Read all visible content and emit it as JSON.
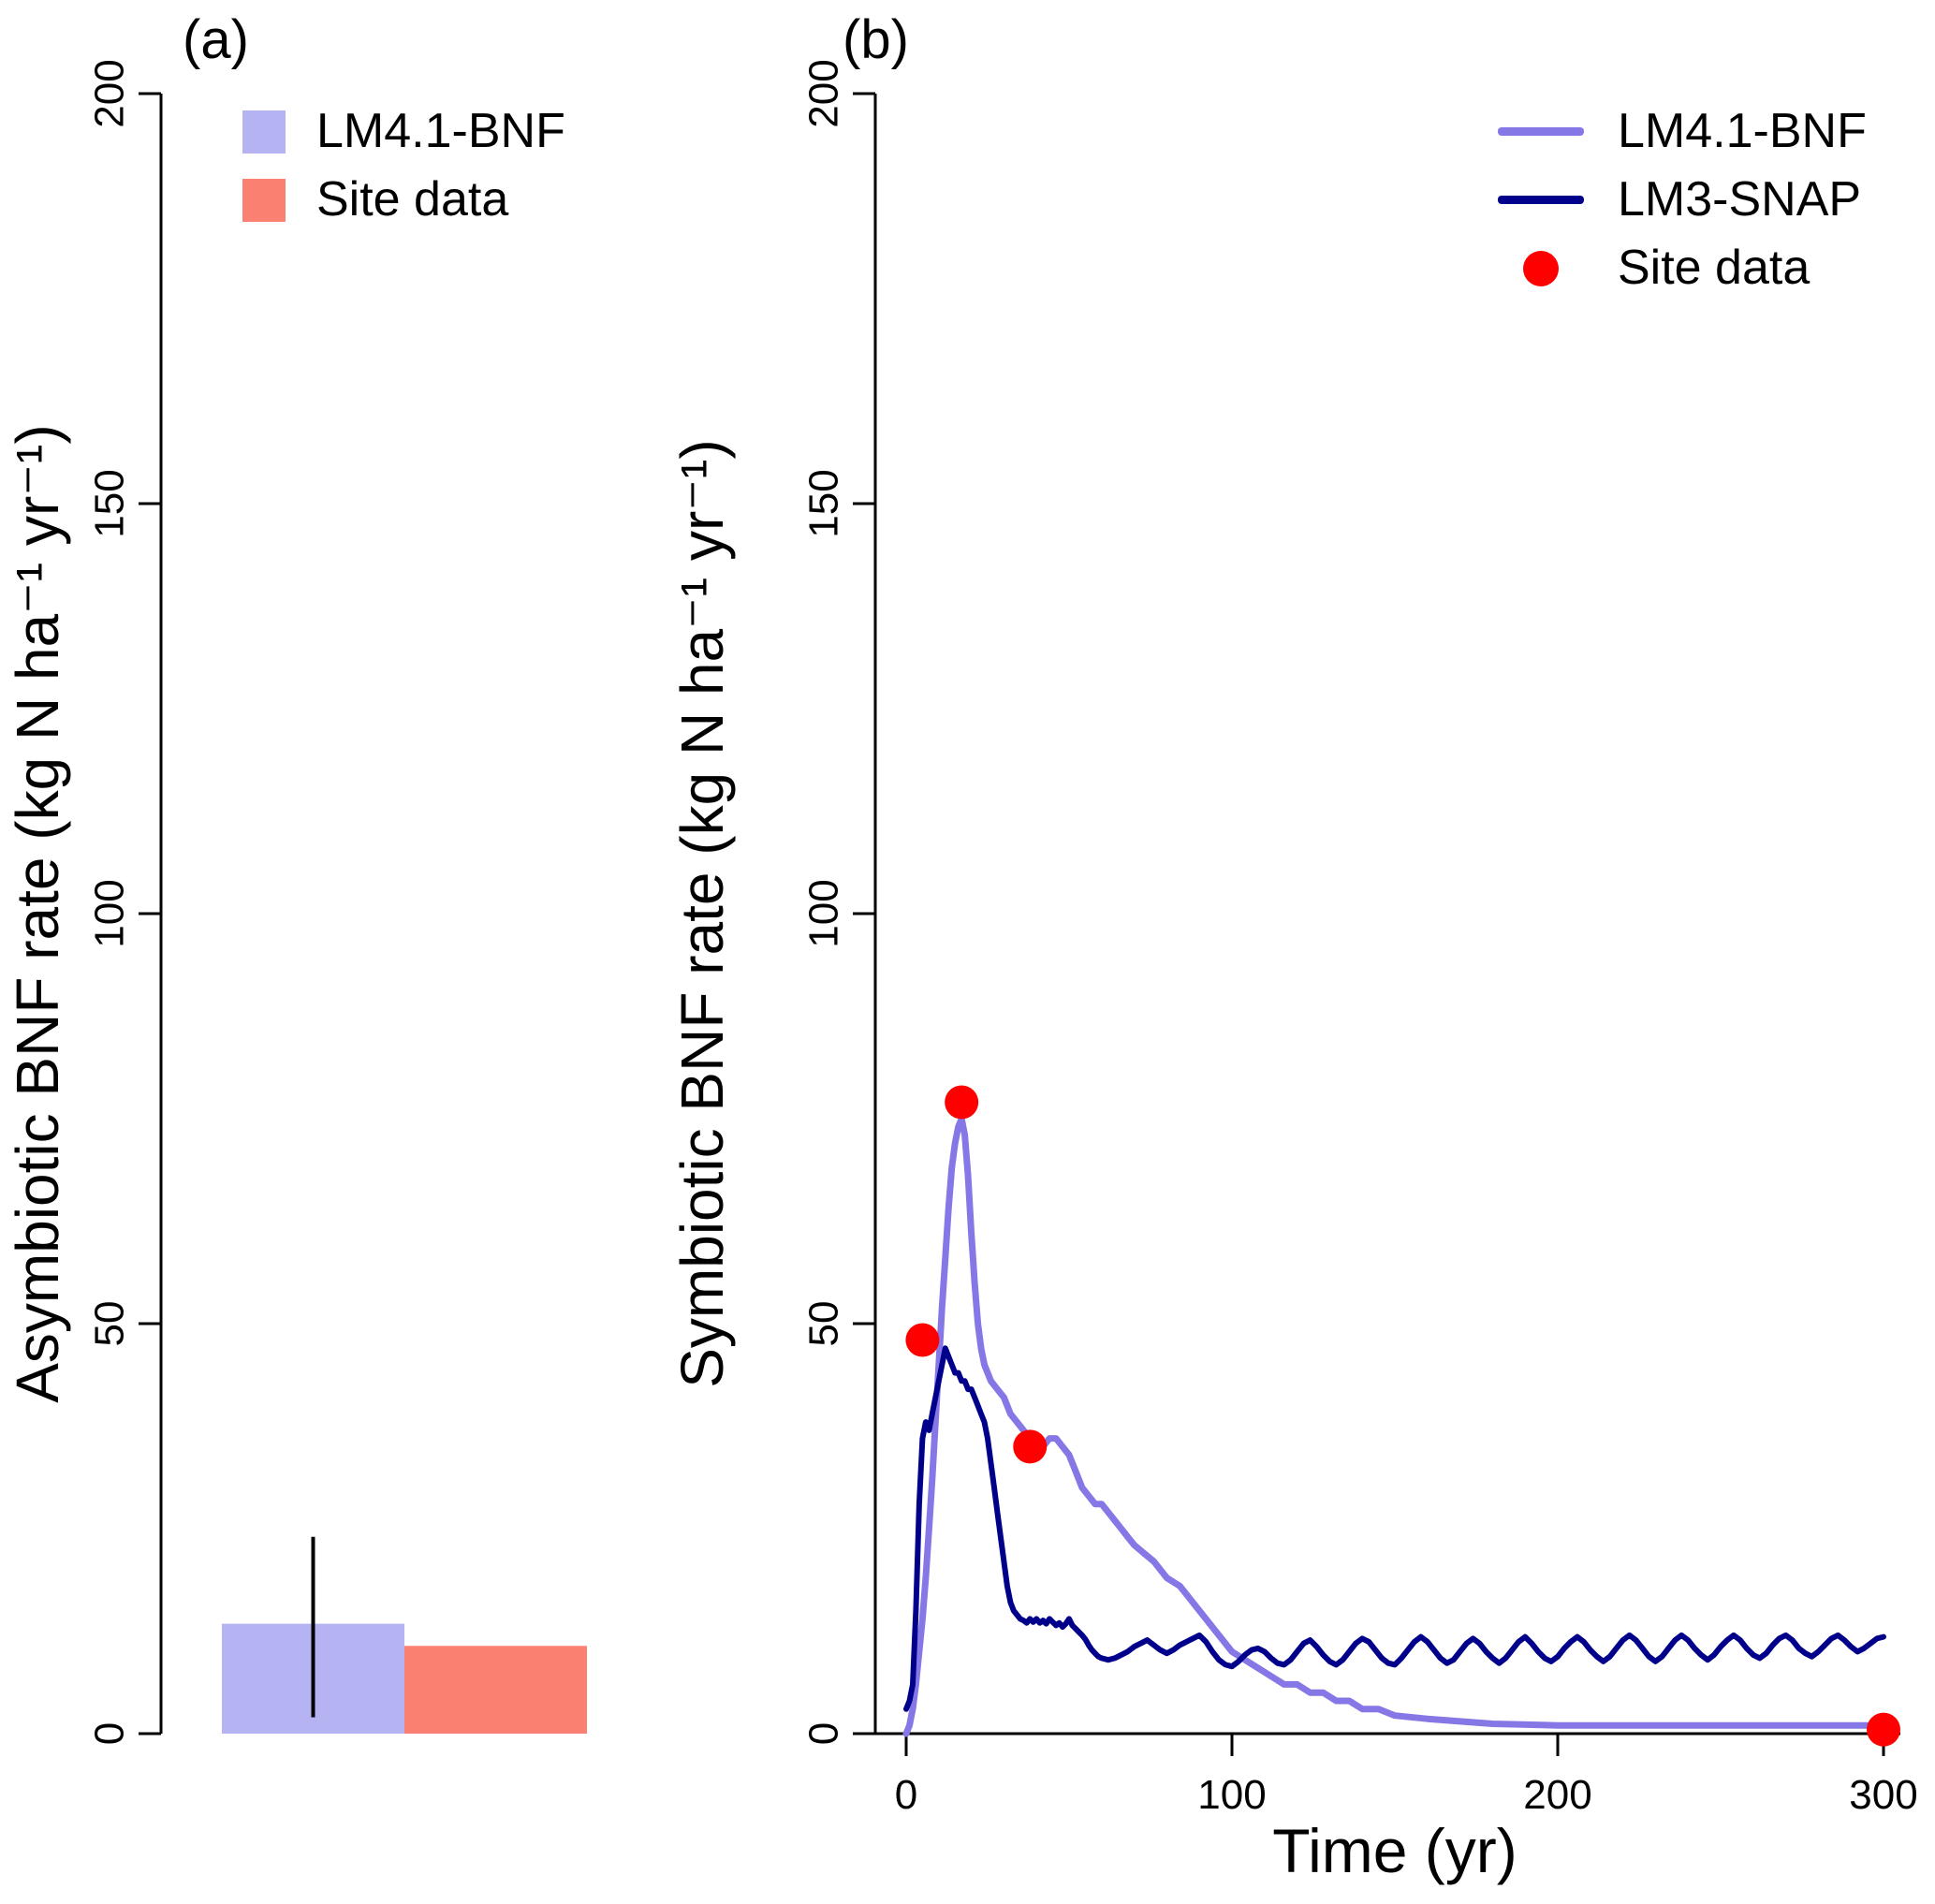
{
  "panel_a": {
    "tag": "(a)",
    "ylabel": "Asymbiotic BNF rate (kg N ha⁻¹ yr⁻¹)",
    "legend": [
      {
        "label": "LM4.1-BNF",
        "swatch": "box",
        "color": "#b6b3f3"
      },
      {
        "label": "Site data",
        "swatch": "box",
        "color": "#fa8072"
      }
    ]
  },
  "panel_b": {
    "tag": "(b)",
    "ylabel": "Symbiotic BNF rate (kg N ha⁻¹ yr⁻¹)",
    "xlabel": "Time (yr)",
    "legend": [
      {
        "label": "LM4.1-BNF",
        "swatch": "line",
        "color": "#8677e6"
      },
      {
        "label": "LM3-SNAP",
        "swatch": "line",
        "color": "#00008b"
      },
      {
        "label": "Site data",
        "swatch": "point",
        "color": "#ff0000"
      }
    ]
  },
  "chart_data": [
    {
      "type": "bar",
      "title": "(a)",
      "ylabel": "Asymbiotic BNF rate (kg N ha⁻¹ yr⁻¹)",
      "categories": [
        "LM4.1-BNF",
        "Site data"
      ],
      "values": [
        13.4,
        10.7
      ],
      "error_bars": [
        {
          "category": "LM4.1-BNF",
          "low": 2,
          "high": 24
        }
      ],
      "ylim": [
        0,
        200
      ],
      "yticks": [
        0,
        50,
        100,
        150,
        200
      ],
      "colors": [
        "#b6b3f3",
        "#fa8072"
      ],
      "legend_position": "top-left",
      "grid": false
    },
    {
      "type": "line",
      "title": "(b)",
      "xlabel": "Time (yr)",
      "ylabel": "Symbiotic BNF rate (kg N ha⁻¹ yr⁻¹)",
      "xlim": [
        0,
        300
      ],
      "ylim": [
        0,
        200
      ],
      "xticks": [
        0,
        100,
        200,
        300
      ],
      "yticks": [
        0,
        50,
        100,
        150,
        200
      ],
      "legend_position": "top-right",
      "grid": false,
      "series": [
        {
          "name": "LM4.1-BNF",
          "color": "#8677e6",
          "points": [
            [
              0,
              0
            ],
            [
              1,
              1
            ],
            [
              2,
              3
            ],
            [
              3,
              6
            ],
            [
              4,
              10
            ],
            [
              5,
              14
            ],
            [
              6,
              19
            ],
            [
              7,
              25
            ],
            [
              8,
              31
            ],
            [
              9,
              38
            ],
            [
              10,
              45
            ],
            [
              11,
              52
            ],
            [
              12,
              58
            ],
            [
              13,
              64
            ],
            [
              14,
              69
            ],
            [
              15,
              72
            ],
            [
              16,
              74
            ],
            [
              17,
              75
            ],
            [
              18,
              73
            ],
            [
              19,
              68
            ],
            [
              20,
              61
            ],
            [
              21,
              55
            ],
            [
              22,
              50
            ],
            [
              23,
              47
            ],
            [
              24,
              45
            ],
            [
              25,
              44
            ],
            [
              26,
              43
            ],
            [
              28,
              42
            ],
            [
              30,
              41
            ],
            [
              32,
              39
            ],
            [
              34,
              38
            ],
            [
              36,
              37
            ],
            [
              38,
              36
            ],
            [
              40,
              35
            ],
            [
              42,
              35
            ],
            [
              44,
              36
            ],
            [
              46,
              36
            ],
            [
              48,
              35
            ],
            [
              50,
              34
            ],
            [
              52,
              32
            ],
            [
              54,
              30
            ],
            [
              56,
              29
            ],
            [
              58,
              28
            ],
            [
              60,
              28
            ],
            [
              62,
              27
            ],
            [
              64,
              26
            ],
            [
              66,
              25
            ],
            [
              68,
              24
            ],
            [
              70,
              23
            ],
            [
              73,
              22
            ],
            [
              76,
              21
            ],
            [
              80,
              19
            ],
            [
              84,
              18
            ],
            [
              88,
              16
            ],
            [
              92,
              14
            ],
            [
              96,
              12
            ],
            [
              100,
              10
            ],
            [
              104,
              9
            ],
            [
              108,
              8
            ],
            [
              112,
              7
            ],
            [
              116,
              6
            ],
            [
              120,
              6
            ],
            [
              124,
              5
            ],
            [
              128,
              5
            ],
            [
              132,
              4
            ],
            [
              136,
              4
            ],
            [
              140,
              3
            ],
            [
              145,
              3
            ],
            [
              150,
              2.2
            ],
            [
              160,
              1.8
            ],
            [
              170,
              1.5
            ],
            [
              180,
              1.2
            ],
            [
              200,
              1
            ],
            [
              220,
              1
            ],
            [
              240,
              1
            ],
            [
              260,
              1
            ],
            [
              280,
              1
            ],
            [
              300,
              1
            ]
          ]
        },
        {
          "name": "LM3-SNAP",
          "color": "#00008b",
          "points": [
            [
              0,
              3
            ],
            [
              1,
              4
            ],
            [
              2,
              6
            ],
            [
              3,
              15
            ],
            [
              4,
              28
            ],
            [
              5,
              36
            ],
            [
              6,
              38
            ],
            [
              7,
              37
            ],
            [
              8,
              39
            ],
            [
              9,
              41
            ],
            [
              10,
              43
            ],
            [
              11,
              45
            ],
            [
              12,
              47
            ],
            [
              13,
              46
            ],
            [
              14,
              45
            ],
            [
              15,
              44
            ],
            [
              16,
              44
            ],
            [
              17,
              43
            ],
            [
              18,
              43
            ],
            [
              19,
              42
            ],
            [
              20,
              42
            ],
            [
              21,
              41
            ],
            [
              22,
              40
            ],
            [
              23,
              39
            ],
            [
              24,
              38
            ],
            [
              25,
              36
            ],
            [
              26,
              33
            ],
            [
              27,
              30
            ],
            [
              28,
              27
            ],
            [
              29,
              24
            ],
            [
              30,
              21
            ],
            [
              31,
              18
            ],
            [
              32,
              16
            ],
            [
              33,
              15
            ],
            [
              34,
              14.5
            ],
            [
              35,
              14
            ],
            [
              36,
              13.8
            ],
            [
              37,
              13.5
            ],
            [
              38,
              14
            ],
            [
              39,
              13.6
            ],
            [
              40,
              14
            ],
            [
              41,
              13.5
            ],
            [
              42,
              13.8
            ],
            [
              43,
              13.4
            ],
            [
              44,
              14
            ],
            [
              45,
              13.6
            ],
            [
              46,
              13.2
            ],
            [
              47,
              13.5
            ],
            [
              48,
              13
            ],
            [
              49,
              13.4
            ],
            [
              50,
              14
            ],
            [
              51,
              13.2
            ],
            [
              52,
              12.8
            ],
            [
              53,
              12.4
            ],
            [
              54,
              12
            ],
            [
              55,
              11.5
            ],
            [
              56,
              10.8
            ],
            [
              57,
              10.2
            ],
            [
              58,
              9.8
            ],
            [
              59,
              9.4
            ],
            [
              60,
              9.2
            ],
            [
              62,
              9
            ],
            [
              64,
              9.2
            ],
            [
              66,
              9.6
            ],
            [
              68,
              10
            ],
            [
              70,
              10.6
            ],
            [
              72,
              11
            ],
            [
              74,
              11.4
            ],
            [
              76,
              10.8
            ],
            [
              78,
              10.2
            ],
            [
              80,
              9.8
            ],
            [
              82,
              10.2
            ],
            [
              84,
              10.8
            ],
            [
              86,
              11.2
            ],
            [
              88,
              11.6
            ],
            [
              90,
              12
            ],
            [
              92,
              11.2
            ],
            [
              94,
              10
            ],
            [
              96,
              9
            ],
            [
              98,
              8.4
            ],
            [
              100,
              8.2
            ],
            [
              102,
              8.8
            ],
            [
              104,
              9.6
            ],
            [
              106,
              10.2
            ],
            [
              108,
              10.4
            ],
            [
              110,
              10
            ],
            [
              112,
              9.2
            ],
            [
              114,
              8.6
            ],
            [
              116,
              8.4
            ],
            [
              118,
              9
            ],
            [
              120,
              10
            ],
            [
              122,
              11
            ],
            [
              124,
              11.4
            ],
            [
              126,
              10.6
            ],
            [
              128,
              9.6
            ],
            [
              130,
              8.8
            ],
            [
              132,
              8.4
            ],
            [
              134,
              9
            ],
            [
              136,
              10
            ],
            [
              138,
              11
            ],
            [
              140,
              11.6
            ],
            [
              142,
              11.2
            ],
            [
              144,
              10.2
            ],
            [
              146,
              9.2
            ],
            [
              148,
              8.6
            ],
            [
              150,
              8.4
            ],
            [
              152,
              9.2
            ],
            [
              154,
              10.2
            ],
            [
              156,
              11.2
            ],
            [
              158,
              11.8
            ],
            [
              160,
              11.2
            ],
            [
              162,
              10.2
            ],
            [
              164,
              9.2
            ],
            [
              166,
              8.6
            ],
            [
              168,
              9
            ],
            [
              170,
              10
            ],
            [
              172,
              11
            ],
            [
              174,
              11.6
            ],
            [
              176,
              11
            ],
            [
              178,
              10
            ],
            [
              180,
              9.2
            ],
            [
              182,
              8.6
            ],
            [
              184,
              9.2
            ],
            [
              186,
              10.2
            ],
            [
              188,
              11.2
            ],
            [
              190,
              11.8
            ],
            [
              192,
              11
            ],
            [
              194,
              10
            ],
            [
              196,
              9.2
            ],
            [
              198,
              8.8
            ],
            [
              200,
              9.4
            ],
            [
              202,
              10.4
            ],
            [
              204,
              11.2
            ],
            [
              206,
              11.8
            ],
            [
              208,
              11.2
            ],
            [
              210,
              10.2
            ],
            [
              212,
              9.4
            ],
            [
              214,
              8.8
            ],
            [
              216,
              9.4
            ],
            [
              218,
              10.4
            ],
            [
              220,
              11.4
            ],
            [
              222,
              12
            ],
            [
              224,
              11.4
            ],
            [
              226,
              10.4
            ],
            [
              228,
              9.4
            ],
            [
              230,
              8.8
            ],
            [
              232,
              9.4
            ],
            [
              234,
              10.4
            ],
            [
              236,
              11.4
            ],
            [
              238,
              12
            ],
            [
              240,
              11.4
            ],
            [
              242,
              10.4
            ],
            [
              244,
              9.6
            ],
            [
              246,
              9
            ],
            [
              248,
              9.6
            ],
            [
              250,
              10.6
            ],
            [
              252,
              11.4
            ],
            [
              254,
              12
            ],
            [
              256,
              11.4
            ],
            [
              258,
              10.4
            ],
            [
              260,
              9.6
            ],
            [
              262,
              9.2
            ],
            [
              264,
              9.8
            ],
            [
              266,
              10.8
            ],
            [
              268,
              11.6
            ],
            [
              270,
              12
            ],
            [
              272,
              11.4
            ],
            [
              274,
              10.4
            ],
            [
              276,
              9.8
            ],
            [
              278,
              9.4
            ],
            [
              280,
              10
            ],
            [
              282,
              10.8
            ],
            [
              284,
              11.6
            ],
            [
              286,
              12
            ],
            [
              288,
              11.4
            ],
            [
              290,
              10.6
            ],
            [
              292,
              10
            ],
            [
              294,
              10.4
            ],
            [
              296,
              11
            ],
            [
              298,
              11.6
            ],
            [
              300,
              11.8
            ]
          ]
        }
      ],
      "scatter": {
        "name": "Site data",
        "color": "#ff0000",
        "points": [
          [
            5,
            48
          ],
          [
            17,
            77
          ],
          [
            38,
            35
          ],
          [
            300,
            0.5
          ]
        ]
      }
    }
  ]
}
